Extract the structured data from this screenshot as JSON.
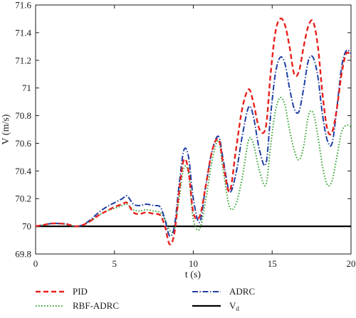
{
  "chart_data": {
    "type": "line",
    "xlabel": "t (s)",
    "ylabel": "V (m/s)",
    "xlim": [
      0,
      20
    ],
    "ylim": [
      69.8,
      71.6
    ],
    "x_ticks": [
      "0",
      "5",
      "10",
      "15",
      "20"
    ],
    "y_ticks": [
      "69.8",
      "70",
      "70.2",
      "70.4",
      "70.6",
      "70.8",
      "71",
      "71.2",
      "71.4",
      "71.6"
    ],
    "grid": false,
    "legend_position": "bottom",
    "legend": [
      {
        "label": "PID",
        "series": 0
      },
      {
        "label": "ADRC",
        "series": 2
      },
      {
        "label": "RBF-ADRC",
        "series": 1
      },
      {
        "label": "V",
        "label_sub": "d",
        "series": 3
      }
    ],
    "series": [
      {
        "name": "PID",
        "color": "#e8211d",
        "dash": "7,4",
        "width": 2.4,
        "x": [
          0,
          0.5,
          1,
          1.5,
          2,
          2.5,
          3,
          3.5,
          4,
          4.5,
          5,
          5.5,
          5.8,
          6.2,
          6.6,
          7,
          7.5,
          7.9,
          8.2,
          8.5,
          8.8,
          9.1,
          9.4,
          9.7,
          10,
          10.4,
          10.8,
          11.2,
          11.6,
          11.9,
          12.3,
          12.7,
          13.1,
          13.5,
          13.8,
          14.2,
          14.6,
          14.9,
          15.2,
          15.5,
          15.8,
          16.1,
          16.4,
          16.7,
          17,
          17.3,
          17.6,
          17.9,
          18.2,
          18.5,
          18.8,
          19.1,
          19.4,
          19.7,
          20
        ],
        "values": [
          70.0,
          70.01,
          70.02,
          70.02,
          70.015,
          70.0,
          70.01,
          70.04,
          70.08,
          70.11,
          70.14,
          70.16,
          70.17,
          70.1,
          70.09,
          70.1,
          70.09,
          70.08,
          70.0,
          69.87,
          69.95,
          70.25,
          70.48,
          70.4,
          70.1,
          70.07,
          70.3,
          70.55,
          70.63,
          70.45,
          70.25,
          70.55,
          70.85,
          70.99,
          70.9,
          70.7,
          70.72,
          71.1,
          71.4,
          71.5,
          71.46,
          71.3,
          71.1,
          71.12,
          71.3,
          71.45,
          71.48,
          71.3,
          70.95,
          70.7,
          70.68,
          70.85,
          71.1,
          71.25,
          71.23
        ]
      },
      {
        "name": "RBF-ADRC",
        "color": "#2ea02c",
        "dash": "1.5,2.5",
        "width": 2.0,
        "x": [
          0,
          0.5,
          1,
          1.5,
          2,
          2.5,
          3,
          3.5,
          4,
          4.5,
          5,
          5.5,
          5.8,
          6.2,
          6.6,
          7,
          7.5,
          7.9,
          8.2,
          8.5,
          8.8,
          9.1,
          9.4,
          9.7,
          10,
          10.4,
          10.8,
          11.2,
          11.6,
          11.9,
          12.3,
          12.7,
          13.1,
          13.5,
          13.8,
          14.2,
          14.6,
          14.9,
          15.2,
          15.5,
          15.8,
          16.1,
          16.4,
          16.7,
          17,
          17.3,
          17.6,
          17.9,
          18.2,
          18.5,
          18.8,
          19.1,
          19.4,
          19.7,
          20
        ],
        "values": [
          70.0,
          70.01,
          70.02,
          70.02,
          70.015,
          70.0,
          70.01,
          70.04,
          70.08,
          70.11,
          70.13,
          70.15,
          70.16,
          70.12,
          70.11,
          70.12,
          70.11,
          70.1,
          70.05,
          69.97,
          69.98,
          70.2,
          70.42,
          70.38,
          70.05,
          69.98,
          70.2,
          70.48,
          70.62,
          70.4,
          70.14,
          70.16,
          70.35,
          70.62,
          70.6,
          70.4,
          70.3,
          70.58,
          70.83,
          70.93,
          70.88,
          70.7,
          70.55,
          70.48,
          70.58,
          70.8,
          70.82,
          70.65,
          70.43,
          70.3,
          70.33,
          70.5,
          70.68,
          70.73,
          70.72
        ]
      },
      {
        "name": "ADRC",
        "color": "#1f3fa3",
        "dash": "8,2.5,1.5,2.5",
        "width": 2.0,
        "x": [
          0,
          0.5,
          1,
          1.5,
          2,
          2.5,
          3,
          3.5,
          4,
          4.5,
          5,
          5.5,
          5.8,
          6.2,
          6.6,
          7,
          7.5,
          7.9,
          8.2,
          8.5,
          8.8,
          9.1,
          9.4,
          9.7,
          10,
          10.4,
          10.8,
          11.2,
          11.6,
          11.9,
          12.3,
          12.7,
          13.1,
          13.5,
          13.8,
          14.2,
          14.6,
          14.9,
          15.2,
          15.5,
          15.8,
          16.1,
          16.4,
          16.7,
          17,
          17.3,
          17.6,
          17.9,
          18.2,
          18.5,
          18.8,
          19.1,
          19.4,
          19.7,
          20
        ],
        "values": [
          70.0,
          70.01,
          70.02,
          70.02,
          70.015,
          70.0,
          70.01,
          70.05,
          70.1,
          70.14,
          70.17,
          70.2,
          70.22,
          70.16,
          70.15,
          70.16,
          70.15,
          70.14,
          70.05,
          69.93,
          70.0,
          70.3,
          70.55,
          70.5,
          70.2,
          70.03,
          70.3,
          70.55,
          70.65,
          70.48,
          70.25,
          70.38,
          70.65,
          70.86,
          70.8,
          70.55,
          70.45,
          70.8,
          71.1,
          71.22,
          71.18,
          71.0,
          70.85,
          70.83,
          71.0,
          71.2,
          71.22,
          71.08,
          70.8,
          70.62,
          70.6,
          70.85,
          71.15,
          71.27,
          71.25
        ]
      },
      {
        "name": "V_d",
        "color": "#000000",
        "dash": "",
        "width": 2.2,
        "x": [
          0,
          20
        ],
        "values": [
          70.0,
          70.0
        ]
      }
    ]
  }
}
